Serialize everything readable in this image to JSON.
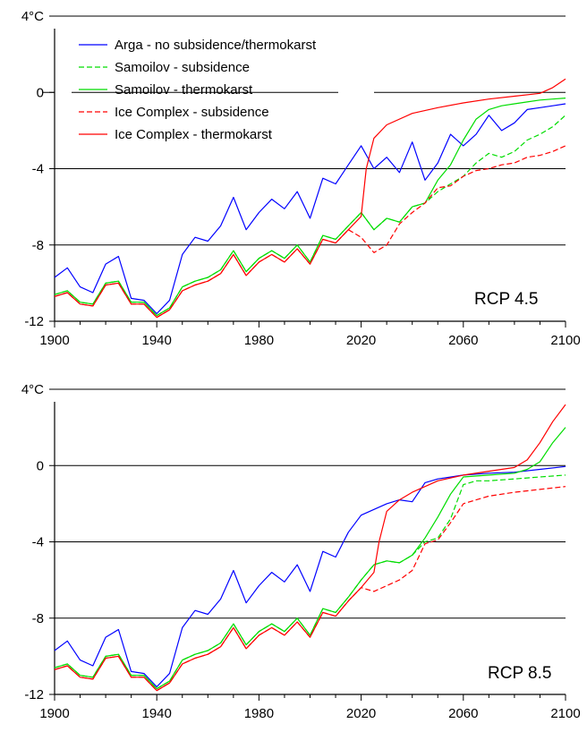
{
  "chart_data": [
    {
      "type": "line",
      "title": "",
      "xlabel": "",
      "ylabel": "",
      "panel_label": "RCP 4.5",
      "xlim": [
        1900,
        2100
      ],
      "ylim": [
        -12,
        4
      ],
      "x_ticks": [
        "1900",
        "1940",
        "1980",
        "2020",
        "2060",
        "2100"
      ],
      "y_ticks": [
        "4°C",
        "0",
        "-4",
        "-8",
        "-12"
      ],
      "legend_placement": "top-left",
      "legend": [
        {
          "name": "Arga - no subsidence/thermokarst",
          "color": "#0000ff",
          "dash": false
        },
        {
          "name": "Samoilov - subsidence",
          "color": "#00dd00",
          "dash": true
        },
        {
          "name": "Samoilov - thermokarst",
          "color": "#00dd00",
          "dash": false
        },
        {
          "name": "Ice Complex - subsidence",
          "color": "#ff0000",
          "dash": true
        },
        {
          "name": "Ice Complex - thermokarst",
          "color": "#ff0000",
          "dash": false
        }
      ],
      "series": [
        {
          "key": "arga",
          "color": "#0000ff",
          "dash": false,
          "x": [
            1900,
            1905,
            1910,
            1915,
            1920,
            1925,
            1930,
            1935,
            1940,
            1945,
            1950,
            1955,
            1960,
            1965,
            1970,
            1975,
            1980,
            1985,
            1990,
            1995,
            2000,
            2005,
            2010,
            2015,
            2020,
            2025,
            2030,
            2035,
            2040,
            2045,
            2050,
            2055,
            2060,
            2065,
            2070,
            2075,
            2080,
            2085,
            2090,
            2095,
            2100
          ],
          "values": [
            -9.7,
            -9.2,
            -10.2,
            -10.5,
            -9.0,
            -8.6,
            -10.8,
            -10.9,
            -11.6,
            -10.9,
            -8.5,
            -7.6,
            -7.8,
            -7.0,
            -5.5,
            -7.2,
            -6.3,
            -5.6,
            -6.1,
            -5.2,
            -6.6,
            -4.5,
            -4.8,
            -3.8,
            -2.8,
            -4.0,
            -3.4,
            -4.2,
            -2.6,
            -4.6,
            -3.7,
            -2.2,
            -2.8,
            -2.2,
            -1.2,
            -2.0,
            -1.6,
            -0.9,
            -0.8,
            -0.7,
            -0.6
          ]
        },
        {
          "key": "samoilov_subsidence",
          "color": "#00dd00",
          "dash": true,
          "x": [
            1900,
            1905,
            1910,
            1915,
            1920,
            1925,
            1930,
            1935,
            1940,
            1945,
            1950,
            1955,
            1960,
            1965,
            1970,
            1975,
            1980,
            1985,
            1990,
            1995,
            2000,
            2005,
            2010,
            2015,
            2020,
            2025,
            2030,
            2035,
            2040,
            2045,
            2050,
            2055,
            2060,
            2065,
            2070,
            2075,
            2080,
            2085,
            2090,
            2095,
            2100
          ],
          "values": [
            -10.6,
            -10.4,
            -11.0,
            -11.1,
            -10.0,
            -9.9,
            -11.0,
            -11.0,
            -11.7,
            -11.3,
            -10.2,
            -9.9,
            -9.7,
            -9.3,
            -8.3,
            -9.4,
            -8.7,
            -8.3,
            -8.7,
            -8.0,
            -8.9,
            -7.5,
            -7.7,
            -7.0,
            -6.3,
            -7.2,
            -6.6,
            -6.8,
            -6.0,
            -5.8,
            -5.2,
            -4.8,
            -4.4,
            -3.7,
            -3.2,
            -3.4,
            -3.1,
            -2.5,
            -2.2,
            -1.8,
            -1.2
          ]
        },
        {
          "key": "samoilov_thermokarst",
          "color": "#00dd00",
          "dash": false,
          "x": [
            1900,
            1905,
            1910,
            1915,
            1920,
            1925,
            1930,
            1935,
            1940,
            1945,
            1950,
            1955,
            1960,
            1965,
            1970,
            1975,
            1980,
            1985,
            1990,
            1995,
            2000,
            2005,
            2010,
            2015,
            2020,
            2025,
            2030,
            2035,
            2040,
            2045,
            2050,
            2055,
            2060,
            2065,
            2070,
            2075,
            2080,
            2085,
            2090,
            2095,
            2100
          ],
          "values": [
            -10.6,
            -10.4,
            -11.0,
            -11.1,
            -10.0,
            -9.9,
            -11.0,
            -11.0,
            -11.7,
            -11.3,
            -10.2,
            -9.9,
            -9.7,
            -9.3,
            -8.3,
            -9.4,
            -8.7,
            -8.3,
            -8.7,
            -8.0,
            -8.9,
            -7.5,
            -7.7,
            -7.0,
            -6.3,
            -7.2,
            -6.6,
            -6.8,
            -6.0,
            -5.8,
            -4.6,
            -3.8,
            -2.5,
            -1.4,
            -0.9,
            -0.7,
            -0.6,
            -0.5,
            -0.4,
            -0.35,
            -0.3
          ]
        },
        {
          "key": "ice_complex_subsidence",
          "color": "#ff0000",
          "dash": true,
          "x": [
            1900,
            1905,
            1910,
            1915,
            1920,
            1925,
            1930,
            1935,
            1940,
            1945,
            1950,
            1955,
            1960,
            1965,
            1970,
            1975,
            1980,
            1985,
            1990,
            1995,
            2000,
            2005,
            2010,
            2015,
            2020,
            2025,
            2030,
            2035,
            2040,
            2045,
            2050,
            2055,
            2060,
            2065,
            2070,
            2075,
            2080,
            2085,
            2090,
            2095,
            2100
          ],
          "values": [
            -10.7,
            -10.5,
            -11.1,
            -11.2,
            -10.1,
            -10.0,
            -11.1,
            -11.1,
            -11.8,
            -11.4,
            -10.4,
            -10.1,
            -9.9,
            -9.5,
            -8.5,
            -9.6,
            -8.9,
            -8.5,
            -8.9,
            -8.2,
            -9.0,
            -7.7,
            -7.9,
            -7.2,
            -7.6,
            -8.4,
            -8.0,
            -6.9,
            -6.3,
            -5.8,
            -5.0,
            -4.9,
            -4.4,
            -4.1,
            -4.0,
            -3.8,
            -3.7,
            -3.4,
            -3.3,
            -3.1,
            -2.8
          ]
        },
        {
          "key": "ice_complex_thermokarst",
          "color": "#ff0000",
          "dash": false,
          "x": [
            1900,
            1905,
            1910,
            1915,
            1920,
            1925,
            1930,
            1935,
            1940,
            1945,
            1950,
            1955,
            1960,
            1965,
            1970,
            1975,
            1980,
            1985,
            1990,
            1995,
            2000,
            2005,
            2010,
            2015,
            2020,
            2022,
            2025,
            2030,
            2040,
            2050,
            2060,
            2070,
            2080,
            2090,
            2095,
            2100
          ],
          "values": [
            -10.7,
            -10.5,
            -11.1,
            -11.2,
            -10.1,
            -10.0,
            -11.1,
            -11.1,
            -11.8,
            -11.4,
            -10.4,
            -10.1,
            -9.9,
            -9.5,
            -8.5,
            -9.6,
            -8.9,
            -8.5,
            -8.9,
            -8.2,
            -9.0,
            -7.7,
            -7.9,
            -7.2,
            -6.5,
            -4.0,
            -2.4,
            -1.7,
            -1.1,
            -0.8,
            -0.55,
            -0.35,
            -0.2,
            -0.05,
            0.25,
            0.7
          ]
        }
      ]
    },
    {
      "type": "line",
      "title": "",
      "xlabel": "",
      "ylabel": "",
      "panel_label": "RCP 8.5",
      "xlim": [
        1900,
        2100
      ],
      "ylim": [
        -12,
        4
      ],
      "x_ticks": [
        "1900",
        "1940",
        "1980",
        "2020",
        "2060",
        "2100"
      ],
      "y_ticks": [
        "4°C",
        "0",
        "-4",
        "-8",
        "-12"
      ],
      "series": [
        {
          "key": "arga",
          "color": "#0000ff",
          "dash": false,
          "x": [
            1900,
            1905,
            1910,
            1915,
            1920,
            1925,
            1930,
            1935,
            1940,
            1945,
            1950,
            1955,
            1960,
            1965,
            1970,
            1975,
            1980,
            1985,
            1990,
            1995,
            2000,
            2005,
            2010,
            2015,
            2020,
            2025,
            2030,
            2035,
            2040,
            2045,
            2050,
            2060,
            2070,
            2080,
            2090,
            2100
          ],
          "values": [
            -9.7,
            -9.2,
            -10.2,
            -10.5,
            -9.0,
            -8.6,
            -10.8,
            -10.9,
            -11.6,
            -10.9,
            -8.5,
            -7.6,
            -7.8,
            -7.0,
            -5.5,
            -7.2,
            -6.3,
            -5.6,
            -6.1,
            -5.2,
            -6.6,
            -4.5,
            -4.8,
            -3.5,
            -2.6,
            -2.3,
            -2.0,
            -1.8,
            -1.9,
            -0.9,
            -0.7,
            -0.5,
            -0.4,
            -0.35,
            -0.2,
            -0.05
          ]
        },
        {
          "key": "samoilov_subsidence",
          "color": "#00dd00",
          "dash": true,
          "x": [
            1900,
            1905,
            1910,
            1915,
            1920,
            1925,
            1930,
            1935,
            1940,
            1945,
            1950,
            1955,
            1960,
            1965,
            1970,
            1975,
            1980,
            1985,
            1990,
            1995,
            2000,
            2005,
            2010,
            2015,
            2020,
            2025,
            2030,
            2035,
            2040,
            2045,
            2050,
            2055,
            2060,
            2065,
            2070,
            2080,
            2090,
            2100
          ],
          "values": [
            -10.6,
            -10.4,
            -11.0,
            -11.1,
            -10.0,
            -9.9,
            -11.0,
            -11.0,
            -11.7,
            -11.3,
            -10.2,
            -9.9,
            -9.7,
            -9.3,
            -8.3,
            -9.4,
            -8.7,
            -8.3,
            -8.7,
            -8.0,
            -8.9,
            -7.5,
            -7.7,
            -6.9,
            -6.0,
            -5.2,
            -5.0,
            -5.1,
            -4.7,
            -4.0,
            -3.8,
            -2.8,
            -1.0,
            -0.8,
            -0.8,
            -0.7,
            -0.6,
            -0.5
          ]
        },
        {
          "key": "samoilov_thermokarst",
          "color": "#00dd00",
          "dash": false,
          "x": [
            1900,
            1905,
            1910,
            1915,
            1920,
            1925,
            1930,
            1935,
            1940,
            1945,
            1950,
            1955,
            1960,
            1965,
            1970,
            1975,
            1980,
            1985,
            1990,
            1995,
            2000,
            2005,
            2010,
            2015,
            2020,
            2025,
            2030,
            2035,
            2040,
            2045,
            2050,
            2055,
            2060,
            2070,
            2080,
            2085,
            2090,
            2095,
            2100
          ],
          "values": [
            -10.6,
            -10.4,
            -11.0,
            -11.1,
            -10.0,
            -9.9,
            -11.0,
            -11.0,
            -11.7,
            -11.3,
            -10.2,
            -9.9,
            -9.7,
            -9.3,
            -8.3,
            -9.4,
            -8.7,
            -8.3,
            -8.7,
            -8.0,
            -8.9,
            -7.5,
            -7.7,
            -6.9,
            -6.0,
            -5.2,
            -5.0,
            -5.1,
            -4.7,
            -3.8,
            -2.7,
            -1.5,
            -0.6,
            -0.5,
            -0.4,
            -0.2,
            0.2,
            1.2,
            2.0
          ]
        },
        {
          "key": "ice_complex_subsidence",
          "color": "#ff0000",
          "dash": true,
          "x": [
            1900,
            1905,
            1910,
            1915,
            1920,
            1925,
            1930,
            1935,
            1940,
            1945,
            1950,
            1955,
            1960,
            1965,
            1970,
            1975,
            1980,
            1985,
            1990,
            1995,
            2000,
            2005,
            2010,
            2015,
            2020,
            2025,
            2030,
            2035,
            2040,
            2045,
            2050,
            2055,
            2060,
            2065,
            2070,
            2080,
            2090,
            2100
          ],
          "values": [
            -10.7,
            -10.5,
            -11.1,
            -11.2,
            -10.1,
            -10.0,
            -11.1,
            -11.1,
            -11.8,
            -11.4,
            -10.4,
            -10.1,
            -9.9,
            -9.5,
            -8.5,
            -9.6,
            -8.9,
            -8.5,
            -8.9,
            -8.2,
            -9.0,
            -7.7,
            -7.9,
            -7.1,
            -6.4,
            -6.6,
            -6.3,
            -6.0,
            -5.5,
            -4.1,
            -3.9,
            -3.0,
            -2.0,
            -1.8,
            -1.6,
            -1.4,
            -1.25,
            -1.1
          ]
        },
        {
          "key": "ice_complex_thermokarst",
          "color": "#ff0000",
          "dash": false,
          "x": [
            1900,
            1905,
            1910,
            1915,
            1920,
            1925,
            1930,
            1935,
            1940,
            1945,
            1950,
            1955,
            1960,
            1965,
            1970,
            1975,
            1980,
            1985,
            1990,
            1995,
            2000,
            2005,
            2010,
            2015,
            2020,
            2025,
            2027,
            2030,
            2035,
            2040,
            2050,
            2060,
            2070,
            2080,
            2085,
            2090,
            2095,
            2100
          ],
          "values": [
            -10.7,
            -10.5,
            -11.1,
            -11.2,
            -10.1,
            -10.0,
            -11.1,
            -11.1,
            -11.8,
            -11.4,
            -10.4,
            -10.1,
            -9.9,
            -9.5,
            -8.5,
            -9.6,
            -8.9,
            -8.5,
            -8.9,
            -8.2,
            -9.0,
            -7.7,
            -7.9,
            -7.1,
            -6.4,
            -5.6,
            -4.0,
            -2.4,
            -1.8,
            -1.4,
            -0.8,
            -0.5,
            -0.3,
            -0.1,
            0.3,
            1.2,
            2.3,
            3.2
          ]
        }
      ]
    }
  ]
}
